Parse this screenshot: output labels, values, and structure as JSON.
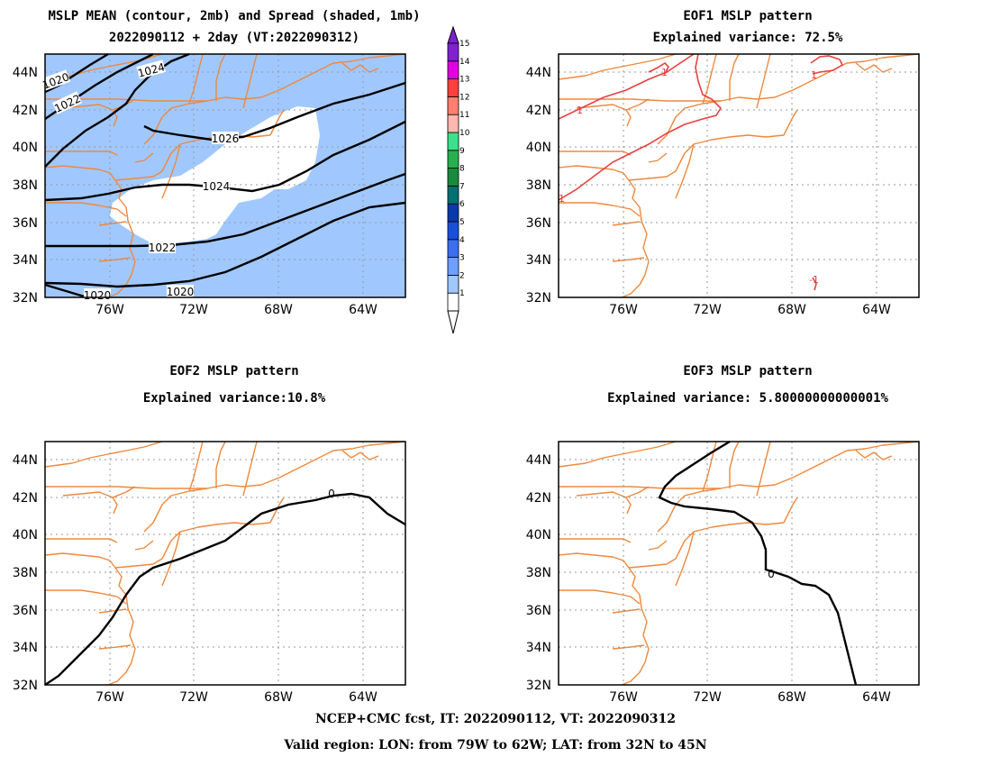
{
  "panel1": {
    "title_line1": "MSLP MEAN (contour, 2mb) and Spread (shaded, 1mb)",
    "title_line2": "2022090112 + 2day (VT:2022090312)",
    "contour_labels": [
      "1020",
      "1022",
      "1024",
      "1026",
      "1024",
      "1022",
      "1020",
      "1020"
    ]
  },
  "panel2": {
    "title_line1": "EOF1 MSLP pattern",
    "title_line2": "Explained variance: 72.5%",
    "contour_labels": [
      "1",
      "1",
      "1",
      "1",
      "-1"
    ]
  },
  "panel3": {
    "title_line1": "EOF2 MSLP pattern",
    "title_line2": "Explained variance:10.8%",
    "contour_labels": [
      "0"
    ]
  },
  "panel4": {
    "title_line1": "EOF3 MSLP pattern",
    "title_line2": "Explained variance: 5.80000000000001%",
    "contour_labels": [
      "0"
    ]
  },
  "axes": {
    "lat_labels": [
      "32N",
      "34N",
      "36N",
      "38N",
      "40N",
      "42N",
      "44N"
    ],
    "lon_labels": [
      "76W",
      "72W",
      "68W",
      "64W"
    ]
  },
  "colorbar": {
    "labels": [
      "1",
      "2",
      "3",
      "4",
      "5",
      "6",
      "7",
      "8",
      "9",
      "10",
      "11",
      "12",
      "13",
      "14",
      "15"
    ],
    "colors": [
      "#ffffff",
      "#a0c8ff",
      "#6ea0ff",
      "#3c6ef0",
      "#1a50d8",
      "#0a3aa8",
      "#007070",
      "#1a8a3c",
      "#28b050",
      "#3ce08c",
      "#ffb8b0",
      "#ff8070",
      "#ff4040",
      "#e000e0",
      "#8020d0"
    ]
  },
  "colors": {
    "coast": "#f0883c",
    "shade": "#a0c8ff",
    "eof1_line": "#e84040",
    "mean_contour": "#000000",
    "grid": "#999999"
  },
  "footer": {
    "line1": "NCEP+CMC fcst, IT: 2022090112, VT: 2022090312",
    "line2": "Valid region: LON: from 79W to 62W; LAT: from 32N to 45N"
  }
}
